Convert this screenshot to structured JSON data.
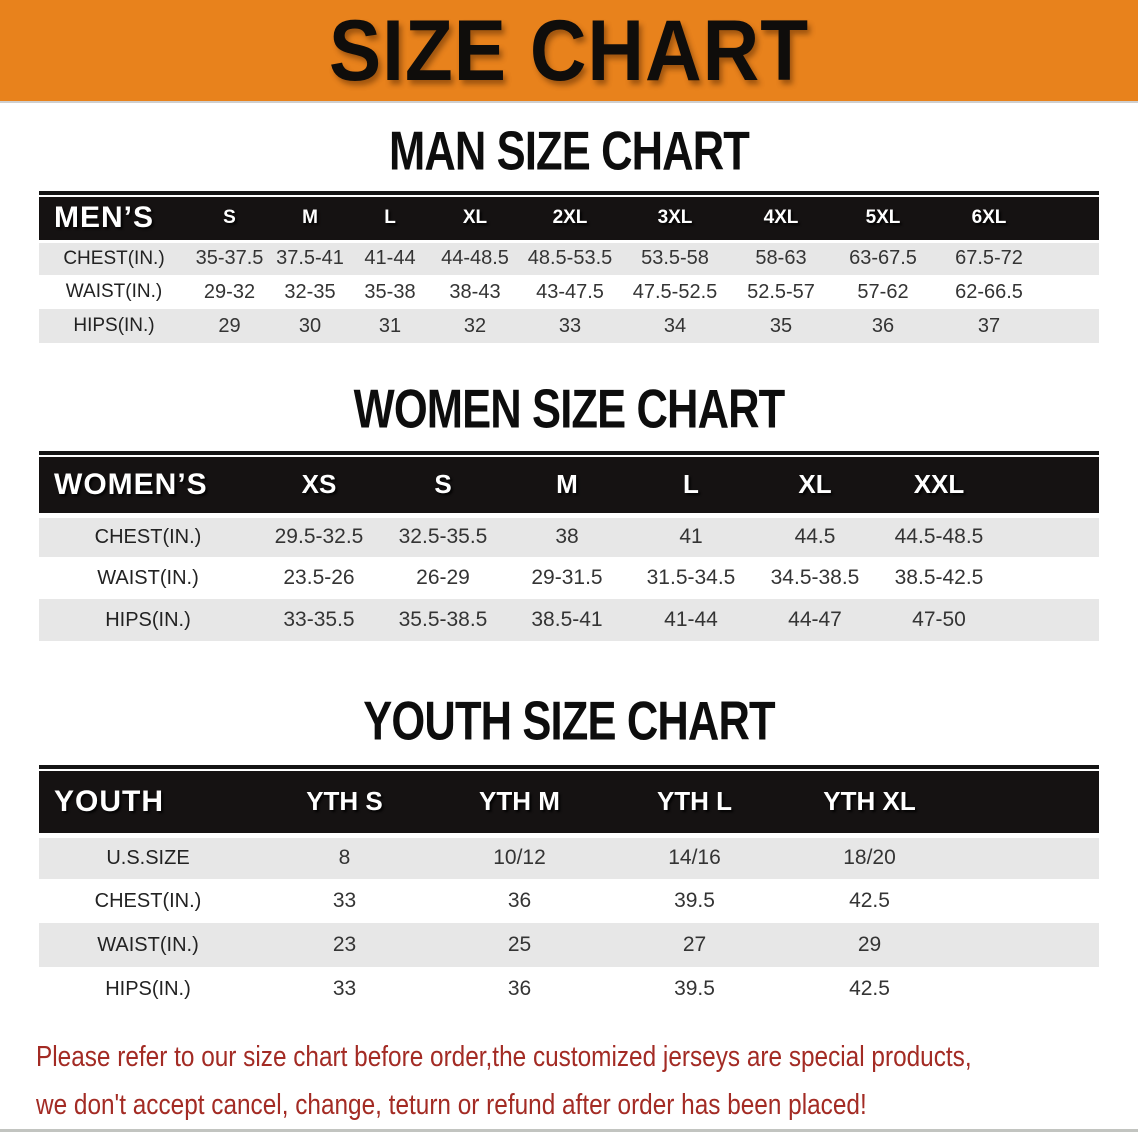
{
  "banner": {
    "title": "SIZE CHART",
    "bg_color": "#E8821C",
    "text_color": "#0f0d0b"
  },
  "sections": [
    {
      "title": "MAN SIZE CHART",
      "table": {
        "header_label": "MEN’S",
        "columns": [
          "S",
          "M",
          "L",
          "XL",
          "2XL",
          "3XL",
          "4XL",
          "5XL",
          "6XL"
        ],
        "rows": [
          {
            "label": "CHEST(IN.)",
            "values": [
              "35-37.5",
              "37.5-41",
              "41-44",
              "44-48.5",
              "48.5-53.5",
              "53.5-58",
              "58-63",
              "63-67.5",
              "67.5-72"
            ]
          },
          {
            "label": "WAIST(IN.)",
            "values": [
              "29-32",
              "32-35",
              "35-38",
              "38-43",
              "43-47.5",
              "47.5-52.5",
              "52.5-57",
              "57-62",
              "62-66.5"
            ]
          },
          {
            "label": "HIPS(IN.)",
            "values": [
              "29",
              "30",
              "31",
              "32",
              "33",
              "34",
              "35",
              "36",
              "37"
            ]
          }
        ]
      }
    },
    {
      "title": "WOMEN SIZE CHART",
      "table": {
        "header_label": "WOMEN’S",
        "columns": [
          "XS",
          "S",
          "M",
          "L",
          "XL",
          "XXL"
        ],
        "rows": [
          {
            "label": "CHEST(IN.)",
            "values": [
              "29.5-32.5",
              "32.5-35.5",
              "38",
              "41",
              "44.5",
              "44.5-48.5"
            ]
          },
          {
            "label": "WAIST(IN.)",
            "values": [
              "23.5-26",
              "26-29",
              "29-31.5",
              "31.5-34.5",
              "34.5-38.5",
              "38.5-42.5"
            ]
          },
          {
            "label": "HIPS(IN.)",
            "values": [
              "33-35.5",
              "35.5-38.5",
              "38.5-41",
              "41-44",
              "44-47",
              "47-50"
            ]
          }
        ]
      }
    },
    {
      "title": "YOUTH SIZE CHART",
      "table": {
        "header_label": "YOUTH",
        "columns": [
          "YTH S",
          "YTH M",
          "YTH L",
          "YTH XL"
        ],
        "rows": [
          {
            "label": "U.S.SIZE",
            "values": [
              "8",
              "10/12",
              "14/16",
              "18/20"
            ]
          },
          {
            "label": "CHEST(IN.)",
            "values": [
              "33",
              "36",
              "39.5",
              "42.5"
            ]
          },
          {
            "label": "WAIST(IN.)",
            "values": [
              "23",
              "25",
              "27",
              "29"
            ]
          },
          {
            "label": "HIPS(IN.)",
            "values": [
              "33",
              "36",
              "39.5",
              "42.5"
            ]
          }
        ]
      }
    }
  ],
  "disclaimer": {
    "line1": "Please refer to our size chart before order,the customized jerseys are special products,",
    "line2": "we don't accept cancel, change, teturn or refund after order has been placed!",
    "color": "#A32B24"
  },
  "chart_data": [
    {
      "type": "table",
      "title": "MAN SIZE CHART",
      "columns": [
        "MEN'S",
        "S",
        "M",
        "L",
        "XL",
        "2XL",
        "3XL",
        "4XL",
        "5XL",
        "6XL"
      ],
      "rows": [
        [
          "CHEST(IN.)",
          "35-37.5",
          "37.5-41",
          "41-44",
          "44-48.5",
          "48.5-53.5",
          "53.5-58",
          "58-63",
          "63-67.5",
          "67.5-72"
        ],
        [
          "WAIST(IN.)",
          "29-32",
          "32-35",
          "35-38",
          "38-43",
          "43-47.5",
          "47.5-52.5",
          "52.5-57",
          "57-62",
          "62-66.5"
        ],
        [
          "HIPS(IN.)",
          "29",
          "30",
          "31",
          "32",
          "33",
          "34",
          "35",
          "36",
          "37"
        ]
      ]
    },
    {
      "type": "table",
      "title": "WOMEN SIZE CHART",
      "columns": [
        "WOMEN'S",
        "XS",
        "S",
        "M",
        "L",
        "XL",
        "XXL"
      ],
      "rows": [
        [
          "CHEST(IN.)",
          "29.5-32.5",
          "32.5-35.5",
          "38",
          "41",
          "44.5",
          "44.5-48.5"
        ],
        [
          "WAIST(IN.)",
          "23.5-26",
          "26-29",
          "29-31.5",
          "31.5-34.5",
          "34.5-38.5",
          "38.5-42.5"
        ],
        [
          "HIPS(IN.)",
          "33-35.5",
          "35.5-38.5",
          "38.5-41",
          "41-44",
          "44-47",
          "47-50"
        ]
      ]
    },
    {
      "type": "table",
      "title": "YOUTH SIZE CHART",
      "columns": [
        "YOUTH",
        "YTH S",
        "YTH M",
        "YTH L",
        "YTH XL"
      ],
      "rows": [
        [
          "U.S.SIZE",
          "8",
          "10/12",
          "14/16",
          "18/20"
        ],
        [
          "CHEST(IN.)",
          "33",
          "36",
          "39.5",
          "42.5"
        ],
        [
          "WAIST(IN.)",
          "23",
          "25",
          "27",
          "29"
        ],
        [
          "HIPS(IN.)",
          "33",
          "36",
          "39.5",
          "42.5"
        ]
      ]
    }
  ]
}
